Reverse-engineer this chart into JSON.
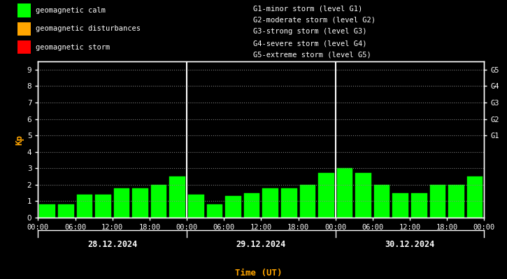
{
  "background_color": "#000000",
  "bar_color": "#00ff00",
  "text_color": "#ffffff",
  "orange_color": "#ffa500",
  "grid_color": "#888888",
  "ylabel": "Kp",
  "time_label": "Time (UT)",
  "ylim": [
    0,
    9.5
  ],
  "yticks": [
    0,
    1,
    2,
    3,
    4,
    5,
    6,
    7,
    8,
    9
  ],
  "right_ytick_labels": [
    "G1",
    "G2",
    "G3",
    "G4",
    "G5"
  ],
  "right_ytick_positions": [
    5,
    6,
    7,
    8,
    9
  ],
  "days": [
    "28.12.2024",
    "29.12.2024",
    "30.12.2024"
  ],
  "legend_left": [
    {
      "label": "geomagnetic calm",
      "color": "#00ff00"
    },
    {
      "label": "geomagnetic disturbances",
      "color": "#ffa500"
    },
    {
      "label": "geomagnetic storm",
      "color": "#ff0000"
    }
  ],
  "legend_right": [
    "G1-minor storm (level G1)",
    "G2-moderate storm (level G2)",
    "G3-strong storm (level G3)",
    "G4-severe storm (level G4)",
    "G5-extreme storm (level G5)"
  ],
  "kp_values": [
    0.8,
    0.8,
    1.4,
    1.4,
    1.8,
    1.8,
    2.0,
    2.5,
    1.4,
    0.8,
    1.3,
    1.5,
    1.8,
    1.8,
    2.0,
    2.7,
    3.0,
    2.7,
    2.0,
    1.5,
    1.5,
    2.0,
    2.0,
    2.5
  ],
  "bar_width": 0.85,
  "font_mono": "monospace",
  "fs_tick": 7.5,
  "fs_legend": 7.5,
  "fs_date": 8.5,
  "fs_ylabel": 9,
  "fs_time_label": 9
}
